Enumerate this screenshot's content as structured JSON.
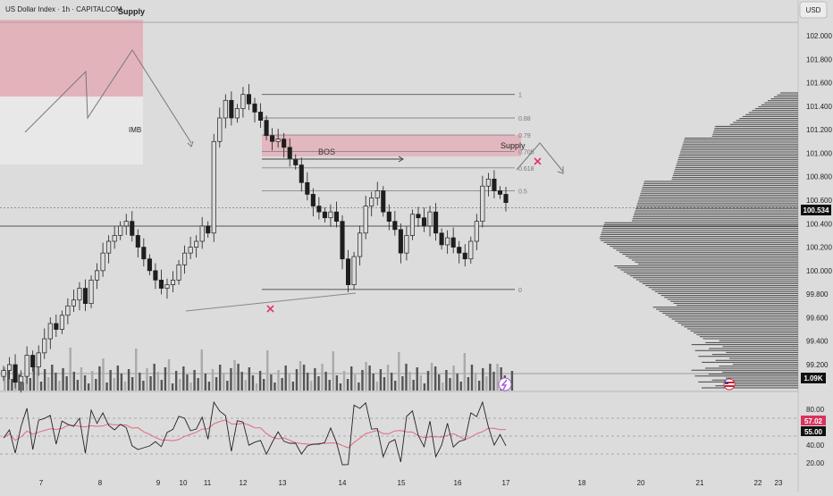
{
  "header": {
    "title": "US Dollar Index · 1h · CAPITALCOM",
    "currency_button": "USD"
  },
  "colors": {
    "background": "#dcdcdc",
    "candle": "#1e1e1e",
    "supply_zone": "#e3b3bb",
    "imbalance_zone": "#e8e8e8",
    "rsi_ma": "#e06a80",
    "marker": "#e8336a",
    "current_price_badge": "#111111",
    "rsi_ma_badge": "#d8345f"
  },
  "chart_data": [
    {
      "type": "candlestick",
      "panel": "price",
      "y_axis_ticks": [
        "102.000",
        "101.800",
        "101.600",
        "101.400",
        "101.200",
        "101.000",
        "100.800",
        "100.600",
        "100.400",
        "100.200",
        "100.000",
        "99.800",
        "99.600",
        "99.400",
        "99.200"
      ],
      "ylim": [
        99.1,
        102.12
      ],
      "x_axis_ticks": [
        "7",
        "8",
        "9",
        "10",
        "11",
        "12",
        "13",
        "14",
        "15",
        "16",
        "17",
        "18",
        "20",
        "21",
        "22",
        "23"
      ],
      "current_price": "100.534",
      "closes": [
        99.15,
        99.2,
        99.05,
        99.1,
        99.28,
        99.18,
        99.3,
        99.42,
        99.55,
        99.5,
        99.62,
        99.7,
        99.75,
        99.85,
        99.72,
        99.92,
        100.0,
        100.15,
        100.25,
        100.3,
        100.38,
        100.42,
        100.3,
        100.2,
        100.1,
        100.0,
        99.92,
        99.85,
        99.88,
        99.92,
        100.05,
        100.15,
        100.2,
        100.25,
        100.38,
        100.32,
        101.1,
        101.3,
        101.45,
        101.3,
        101.38,
        101.5,
        101.42,
        101.35,
        101.28,
        101.15,
        101.1,
        101.12,
        101.05,
        100.95,
        100.9,
        100.75,
        100.65,
        100.55,
        100.5,
        100.45,
        100.5,
        100.42,
        100.1,
        99.88,
        100.12,
        100.32,
        100.55,
        100.62,
        100.68,
        100.5,
        100.42,
        100.35,
        100.15,
        100.3,
        100.48,
        100.45,
        100.38,
        100.5,
        100.32,
        100.22,
        100.28,
        100.2,
        100.15,
        100.1,
        100.25,
        100.42,
        100.72,
        100.78,
        100.68,
        100.65,
        100.58
      ],
      "volume_label": "1.09K",
      "annotations": [
        "Supply",
        "IMB",
        "BOS",
        "Supply"
      ],
      "fib_levels": [
        {
          "label": "1",
          "value": 101.5
        },
        {
          "label": "0.88",
          "value": 101.3
        },
        {
          "label": "0.79",
          "value": 101.155
        },
        {
          "label": "0.705",
          "value": 101.015
        },
        {
          "label": "0.618",
          "value": 100.875
        },
        {
          "label": "0.5",
          "value": 100.68
        },
        {
          "label": "0",
          "value": 99.84
        }
      ]
    },
    {
      "type": "line",
      "panel": "RSI",
      "y_axis_ticks": [
        "80.00",
        "40.00",
        "20.00"
      ],
      "ylim": [
        10,
        92
      ],
      "rsi_value": "55.00",
      "rsi_ma_value": "57.02",
      "levels": [
        70,
        50,
        30
      ]
    }
  ]
}
